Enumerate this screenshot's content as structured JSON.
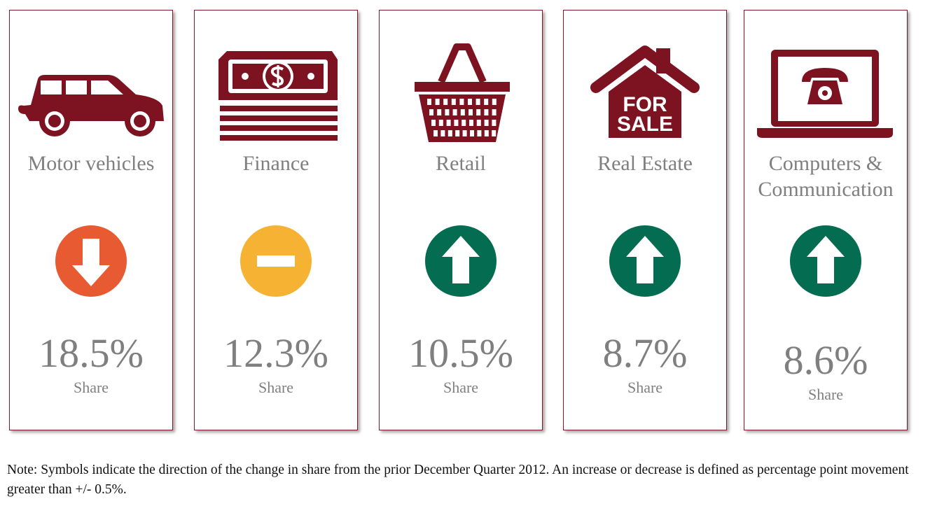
{
  "cards": [
    {
      "label": "Motor vehicles",
      "direction": "down",
      "color": "#e85a32",
      "value": "18.5%",
      "caption": "Share"
    },
    {
      "label": "Finance",
      "direction": "flat",
      "color": "#f6b233",
      "value": "12.3%",
      "caption": "Share"
    },
    {
      "label": "Retail",
      "direction": "up",
      "color": "#046c50",
      "value": "10.5%",
      "caption": "Share"
    },
    {
      "label": "Real Estate",
      "direction": "up",
      "color": "#046c50",
      "value": "8.7%",
      "caption": "Share",
      "icon_text": [
        "FOR",
        "SALE"
      ]
    },
    {
      "label": "Computers & Communication",
      "direction": "up",
      "color": "#046c50",
      "value": "8.6%",
      "caption": "Share"
    }
  ],
  "note": "Note: Symbols indicate the direction of the change in share from the prior December Quarter 2012. An increase or decrease is defined as percentage point movement greater than +/- 0.5%."
}
